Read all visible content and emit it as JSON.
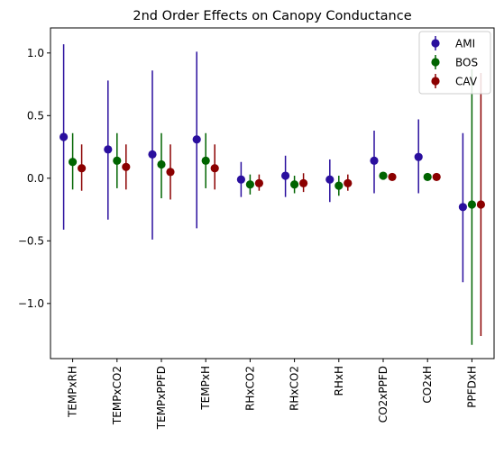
{
  "chart_data": {
    "type": "scatter",
    "title": "2nd Order Effects on Canopy Conductance",
    "xlabel": "",
    "ylabel": "",
    "categories": [
      "TEMPxRH",
      "TEMPxCO2",
      "TEMPxPPFD",
      "TEMPxH",
      "RHxCO2",
      "RHxCO2",
      "RHxH",
      "CO2xPPFD",
      "CO2xH",
      "PPFDxH"
    ],
    "ylim": [
      -1.44,
      1.2
    ],
    "yticks": [
      -1.0,
      -0.5,
      0.0,
      0.5,
      1.0
    ],
    "ytick_labels": [
      "−1.0",
      "−0.5",
      "0.0",
      "0.5",
      "1.0"
    ],
    "grid": false,
    "legend_position": "top-right",
    "series": [
      {
        "name": "AMI",
        "color": "#2a0f9e",
        "values": [
          0.33,
          0.23,
          0.19,
          0.31,
          -0.01,
          0.02,
          -0.01,
          0.14,
          0.17,
          -0.23
        ],
        "lower": [
          -0.41,
          -0.33,
          -0.49,
          -0.4,
          -0.15,
          -0.15,
          -0.19,
          -0.12,
          -0.12,
          -0.83
        ],
        "upper": [
          1.07,
          0.78,
          0.86,
          1.01,
          0.13,
          0.18,
          0.15,
          0.38,
          0.47,
          0.36
        ]
      },
      {
        "name": "BOS",
        "color": "#006400",
        "values": [
          0.13,
          0.14,
          0.11,
          0.14,
          -0.05,
          -0.05,
          -0.06,
          0.02,
          0.01,
          -0.21
        ],
        "lower": [
          -0.09,
          -0.08,
          -0.16,
          -0.08,
          -0.13,
          -0.12,
          -0.14,
          0.01,
          0.0,
          -1.33
        ],
        "upper": [
          0.36,
          0.36,
          0.36,
          0.36,
          0.03,
          0.02,
          0.02,
          0.03,
          0.02,
          0.87
        ]
      },
      {
        "name": "CAV",
        "color": "#8b0000",
        "values": [
          0.08,
          0.09,
          0.05,
          0.08,
          -0.04,
          -0.04,
          -0.04,
          0.01,
          0.01,
          -0.21
        ],
        "lower": [
          -0.1,
          -0.09,
          -0.17,
          -0.09,
          -0.1,
          -0.11,
          -0.1,
          0.0,
          0.0,
          -1.26
        ],
        "upper": [
          0.27,
          0.27,
          0.27,
          0.27,
          0.03,
          0.04,
          0.03,
          0.02,
          0.02,
          0.84
        ]
      }
    ]
  }
}
